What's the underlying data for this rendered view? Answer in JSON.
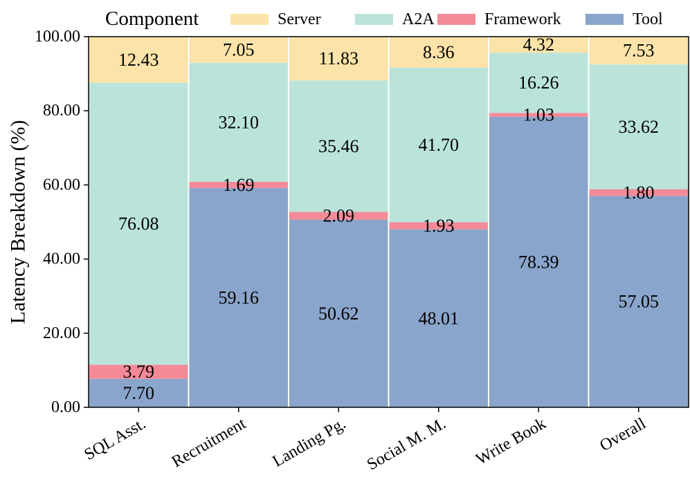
{
  "chart_data": {
    "type": "bar",
    "stacked": true,
    "title": "",
    "xlabel": "",
    "ylabel": "Latency Breakdown (%)",
    "ylim": [
      0,
      100
    ],
    "yticks": [
      "0.00",
      "20.00",
      "40.00",
      "60.00",
      "80.00",
      "100.00"
    ],
    "categories": [
      "SQL Asst.",
      "Recruitment",
      "Landing Pg.",
      "Social M. M.",
      "Write Book",
      "Overall"
    ],
    "series": [
      {
        "name": "Tool",
        "color": "#8aa5cb",
        "values": [
          7.7,
          59.16,
          50.62,
          48.01,
          78.39,
          57.05
        ],
        "labels": [
          "7.70",
          "59.16",
          "50.62",
          "48.01",
          "78.39",
          "57.05"
        ]
      },
      {
        "name": "Framework",
        "color": "#f48a98",
        "values": [
          3.79,
          1.69,
          2.09,
          1.93,
          1.03,
          1.8
        ],
        "labels": [
          "3.79",
          "1.69",
          "2.09",
          "1.93",
          "1.03",
          "1.80"
        ]
      },
      {
        "name": "A2A",
        "color": "#bae4da",
        "values": [
          76.08,
          32.1,
          35.46,
          41.7,
          16.26,
          33.62
        ],
        "labels": [
          "76.08",
          "32.10",
          "35.46",
          "41.70",
          "16.26",
          "33.62"
        ]
      },
      {
        "name": "Server",
        "color": "#fbe3a9",
        "values": [
          12.43,
          7.05,
          11.83,
          8.36,
          4.32,
          7.53
        ],
        "labels": [
          "12.43",
          "7.05",
          "11.83",
          "8.36",
          "4.32",
          "7.53"
        ]
      }
    ],
    "legend": {
      "title": "Component",
      "position": "top",
      "order": [
        "Server",
        "A2A",
        "Framework",
        "Tool"
      ]
    }
  }
}
